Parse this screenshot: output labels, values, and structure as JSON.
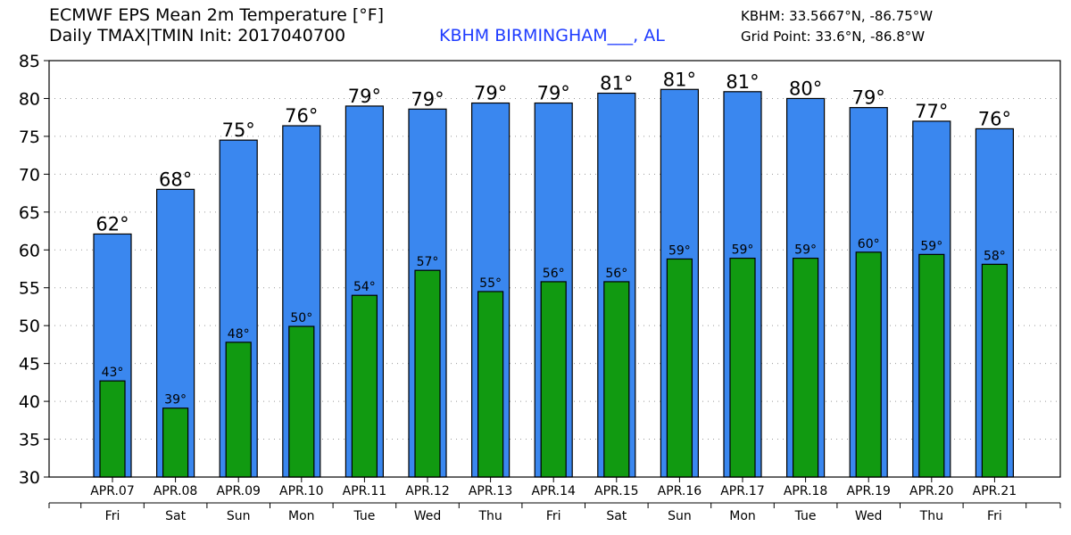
{
  "header": {
    "title": "ECMWF EPS Mean 2m Temperature [°F]",
    "subtitle": "Daily TMAX|TMIN Init: 2017040700",
    "station": "KBHM BIRMINGHAM___, AL",
    "station_coords": "KBHM: 33.5667°N, -86.75°W",
    "grid_point": "Grid Point: 33.6°N, -86.8°W"
  },
  "colors": {
    "tmax_bar": "#3a87ef",
    "tmin_bar": "#119a11",
    "bar_outline": "#000000",
    "grid": "#999999",
    "station_text": "#1f3cff"
  },
  "chart_data": {
    "type": "bar",
    "title": "ECMWF EPS Mean 2m Temperature [°F]",
    "xlabel": "",
    "ylabel": "",
    "ylim": [
      30,
      85
    ],
    "yticks": [
      30,
      35,
      40,
      45,
      50,
      55,
      60,
      65,
      70,
      75,
      80,
      85
    ],
    "grid": true,
    "categories": [
      "APR.07",
      "APR.08",
      "APR.09",
      "APR.10",
      "APR.11",
      "APR.12",
      "APR.13",
      "APR.14",
      "APR.15",
      "APR.16",
      "APR.17",
      "APR.18",
      "APR.19",
      "APR.20",
      "APR.21"
    ],
    "days": [
      "Fri",
      "Sat",
      "Sun",
      "Mon",
      "Tue",
      "Wed",
      "Thu",
      "Fri",
      "Sat",
      "Sun",
      "Mon",
      "Tue",
      "Wed",
      "Thu",
      "Fri"
    ],
    "series": [
      {
        "values": [
          62.1,
          68.0,
          74.5,
          76.4,
          79.0,
          78.6,
          79.4,
          79.4,
          80.7,
          81.2,
          80.9,
          80.0,
          78.8,
          77.0,
          76.0
        ],
        "labels": [
          "62°",
          "68°",
          "75°",
          "76°",
          "79°",
          "79°",
          "79°",
          "79°",
          "81°",
          "81°",
          "81°",
          "80°",
          "79°",
          "77°",
          "76°"
        ]
      },
      {
        "values": [
          42.7,
          39.1,
          47.8,
          49.9,
          54.0,
          57.3,
          54.5,
          55.8,
          55.8,
          58.8,
          58.9,
          58.9,
          59.7,
          59.4,
          58.1
        ],
        "labels": [
          "43°",
          "39°",
          "48°",
          "50°",
          "54°",
          "57°",
          "55°",
          "56°",
          "56°",
          "59°",
          "59°",
          "59°",
          "60°",
          "59°",
          "58°"
        ]
      }
    ]
  }
}
